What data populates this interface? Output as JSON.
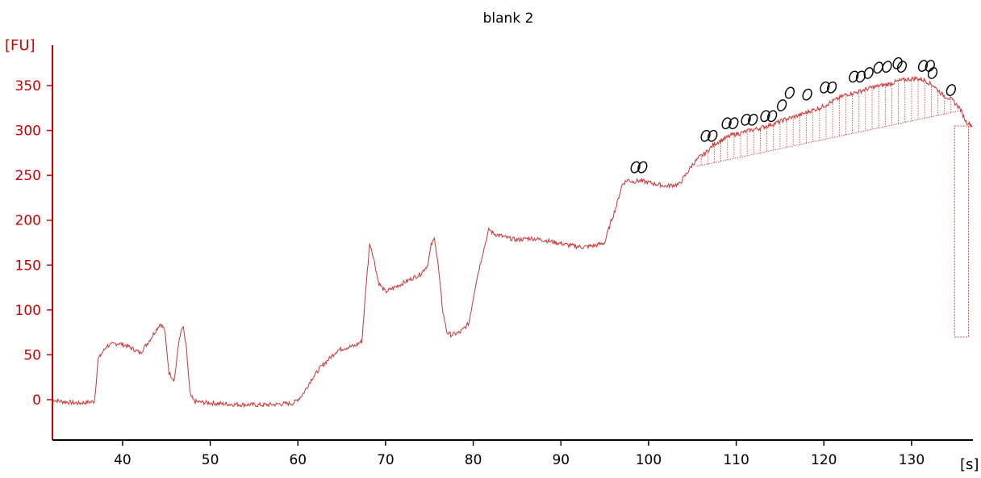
{
  "chart_data": {
    "type": "line",
    "title": "blank 2",
    "ylabel": "[FU]",
    "xlabel": "[s]",
    "xlim": [
      32,
      137
    ],
    "ylim": [
      -45,
      395
    ],
    "xticks": [
      40,
      50,
      60,
      70,
      80,
      90,
      100,
      110,
      120,
      130
    ],
    "yticks": [
      0,
      50,
      100,
      150,
      200,
      250,
      300,
      350
    ],
    "colors": {
      "trace": "#cc3333",
      "yaxis": "#cc0000",
      "xaxis": "#000000",
      "markers": "#000000"
    },
    "series": [
      {
        "x": [
          32,
          33,
          35,
          36.8,
          37.2,
          38.2,
          39.5,
          40.5,
          41.5,
          42,
          43,
          44.3,
          44.8,
          45.3,
          45.9,
          46.5,
          46.9,
          47.3,
          47.7,
          48.2,
          49,
          52,
          56,
          59.5,
          60.5,
          61.5,
          62.5,
          63.5,
          64.5,
          65.5,
          66.5,
          67.3,
          67.8,
          68.2,
          68.6,
          69.2,
          70,
          71,
          72,
          73,
          74,
          74.8,
          75.2,
          75.6,
          76,
          76.5,
          77,
          77.5,
          78.5,
          79.5,
          80.3,
          81,
          81.8,
          82.3,
          83,
          84,
          85,
          86.5,
          88,
          89.5,
          91,
          92.5,
          94,
          95,
          95.6,
          96.3,
          97,
          97.6,
          98.2,
          99,
          100,
          101,
          102,
          103.5,
          104.2,
          105,
          105.8,
          106.5,
          107.5,
          108.5,
          109.5,
          110.5,
          111.5,
          112.5,
          113.5,
          114.5,
          115.5,
          116.5,
          117.5,
          118.5,
          119.5,
          120.5,
          121.5,
          122.5,
          123.5,
          124.5,
          125.5,
          126.5,
          127.5,
          128.5,
          129.5,
          130.5,
          131.5,
          132.5,
          133.5,
          134.5,
          135.5,
          136.2,
          137
        ],
        "y": [
          0,
          -2,
          -4,
          -2,
          45,
          60,
          63,
          60,
          55,
          52,
          65,
          85,
          78,
          30,
          22,
          70,
          82,
          55,
          5,
          -2,
          -3,
          -5,
          -6,
          -4,
          5,
          22,
          35,
          45,
          55,
          58,
          60,
          65,
          130,
          175,
          160,
          130,
          120,
          125,
          130,
          135,
          140,
          150,
          172,
          180,
          150,
          100,
          75,
          72,
          75,
          85,
          130,
          160,
          190,
          185,
          183,
          180,
          178,
          180,
          178,
          175,
          172,
          170,
          172,
          175,
          195,
          215,
          240,
          245,
          243,
          244,
          242,
          240,
          238,
          240,
          250,
          262,
          270,
          275,
          285,
          290,
          295,
          297,
          300,
          302,
          305,
          308,
          312,
          315,
          318,
          322,
          325,
          330,
          335,
          340,
          342,
          345,
          348,
          350,
          352,
          355,
          357,
          358,
          356,
          350,
          340,
          335,
          325,
          310,
          305
        ]
      }
    ],
    "annotations": {
      "pairs": [
        [
          98.8,
          259
        ],
        [
          106.8,
          294
        ],
        [
          109.2,
          308
        ],
        [
          111.4,
          312
        ],
        [
          113.6,
          316
        ],
        [
          120.4,
          348
        ],
        [
          123.7,
          360
        ],
        [
          131.6,
          372
        ]
      ],
      "singles": [
        [
          115.2,
          328
        ],
        [
          116.1,
          342
        ],
        [
          118.1,
          340
        ],
        [
          125.1,
          364
        ],
        [
          126.2,
          370
        ],
        [
          127.2,
          371
        ],
        [
          128.4,
          375
        ],
        [
          128.9,
          371
        ],
        [
          132.4,
          364
        ],
        [
          134.5,
          345
        ]
      ]
    }
  }
}
